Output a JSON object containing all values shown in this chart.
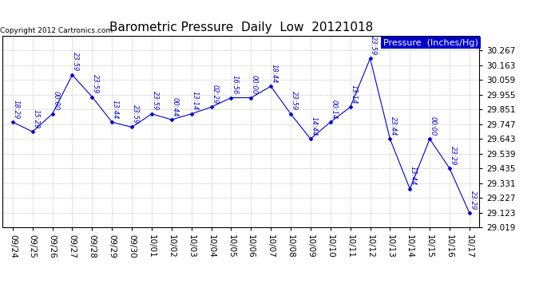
{
  "title": "Barometric Pressure  Daily  Low  20121018",
  "copyright": "Copyright 2012 Cartronics.com",
  "legend_label": "Pressure  (Inches/Hg)",
  "background_color": "#ffffff",
  "plot_bg_color": "#ffffff",
  "line_color": "#0000cc",
  "grid_color": "#bbbbbb",
  "dates": [
    "09/24",
    "09/25",
    "09/26",
    "09/27",
    "09/28",
    "09/29",
    "09/30",
    "10/01",
    "10/02",
    "10/03",
    "10/04",
    "10/05",
    "10/06",
    "10/07",
    "10/08",
    "10/09",
    "10/10",
    "10/11",
    "10/12",
    "10/13",
    "10/14",
    "10/15",
    "10/16",
    "10/17"
  ],
  "values": [
    29.762,
    29.694,
    29.82,
    30.095,
    29.94,
    29.762,
    29.726,
    29.82,
    29.779,
    29.82,
    29.868,
    29.934,
    29.934,
    30.015,
    29.82,
    29.643,
    29.762,
    29.868,
    30.212,
    29.643,
    29.29,
    29.643,
    29.435,
    29.12
  ],
  "annotations": [
    "18:29",
    "15:29",
    "00:00",
    "23:59",
    "23:59",
    "13:44",
    "23:59",
    "23:59",
    "00:44",
    "13:14",
    "02:29",
    "16:56",
    "00:00",
    "18:44",
    "23:59",
    "14:44",
    "00:14",
    "13:14",
    "23:59",
    "23:44",
    "13:44",
    "00:00",
    "23:29",
    "23:29"
  ],
  "ylim_min": 29.019,
  "ylim_max": 30.371,
  "yticks": [
    29.019,
    29.123,
    29.227,
    29.331,
    29.435,
    29.539,
    29.643,
    29.747,
    29.851,
    29.955,
    30.059,
    30.163,
    30.267
  ],
  "title_fontsize": 11,
  "annotation_fontsize": 6,
  "tick_fontsize": 7.5,
  "legend_fontsize": 8,
  "copyright_fontsize": 6.5
}
